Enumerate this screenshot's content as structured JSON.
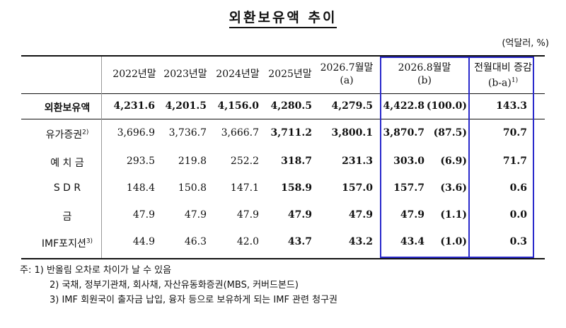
{
  "title": "외환보유액 추이",
  "unit": "(억달러, %)",
  "headers": [
    {
      "line1": "2022년말",
      "line2": ""
    },
    {
      "line1": "2023년말",
      "line2": ""
    },
    {
      "line1": "2024년말",
      "line2": ""
    },
    {
      "line1": "2025년말",
      "line2": ""
    },
    {
      "line1": "2026.7월말",
      "line2": "(a)"
    },
    {
      "line1": "2026.8월말",
      "line2": "(b)"
    },
    {
      "line1": "전월대비 증감",
      "line2": "(b-a)",
      "sup": "1)"
    }
  ],
  "rows": [
    {
      "label": "외환보유액",
      "sup": "",
      "values": [
        "4,231.6",
        "4,201.5",
        "4,156.0",
        "4,280.5",
        "4,279.5",
        "4,422.8",
        "(100.0)",
        "143.3"
      ]
    },
    {
      "label": "유가증권",
      "sup": "2)",
      "values": [
        "3,696.9",
        "3,736.7",
        "3,666.7",
        "3,711.2",
        "3,800.1",
        "3,870.7",
        "(87.5)",
        "70.7"
      ]
    },
    {
      "label": "예 치 금",
      "sup": "",
      "values": [
        "293.5",
        "219.8",
        "252.2",
        "318.7",
        "231.3",
        "303.0",
        "(6.9)",
        "71.7"
      ]
    },
    {
      "label": "S D R",
      "sup": "",
      "values": [
        "148.4",
        "150.8",
        "147.1",
        "158.9",
        "157.0",
        "157.7",
        "(3.6)",
        "0.6"
      ]
    },
    {
      "label": "금",
      "sup": "",
      "values": [
        "47.9",
        "47.9",
        "47.9",
        "47.9",
        "47.9",
        "47.9",
        "(1.1)",
        "0.0"
      ]
    },
    {
      "label": "IMF포지션",
      "sup": "3)",
      "values": [
        "44.9",
        "46.3",
        "42.0",
        "43.7",
        "43.2",
        "43.4",
        "(1.0)",
        "0.3"
      ]
    }
  ],
  "notes": [
    "주: 1) 반올림 오차로 차이가 날 수 있음",
    "2) 국채, 정부기관채, 회사채, 자산유동화증권(MBS, 커버드본드)",
    "3) IMF 회원국이 출자금 납입, 융자 등으로 보유하게 되는 IMF 관련 청구권"
  ],
  "colors": {
    "highlight_border": "#2a2acb"
  }
}
